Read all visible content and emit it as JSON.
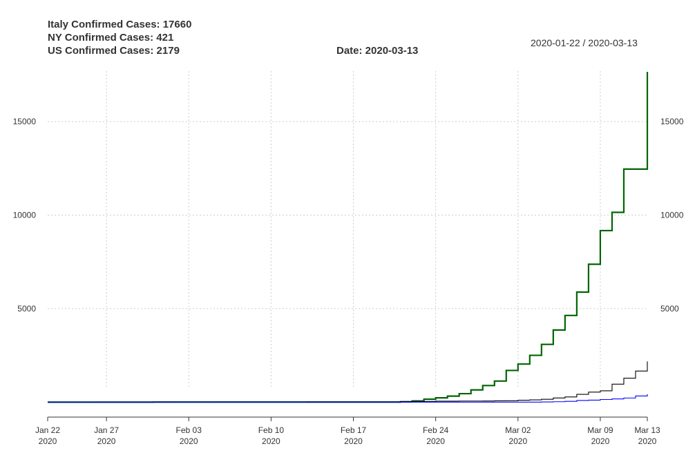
{
  "header": {
    "italy_line": "Italy Confirmed Cases: 17660",
    "ny_line": "NY Confirmed Cases: 421",
    "us_line": "US Confirmed Cases: 2179",
    "date_line": "Date: 2020-03-13",
    "range_line": "2020-01-22 / 2020-03-13"
  },
  "colors": {
    "italy": "#006400",
    "us": "#000000",
    "ny": "#0000ff",
    "grid": "#cccccc",
    "axis": "#333333",
    "text": "#333333"
  },
  "chart_data": {
    "type": "line",
    "step": true,
    "x_type": "date",
    "xlim": [
      "2020-01-22",
      "2020-03-13"
    ],
    "ylim": [
      -800,
      17700
    ],
    "grid": true,
    "x_ticks": [
      {
        "date": "2020-01-22",
        "label": "Jan 22",
        "sublabel": "2020"
      },
      {
        "date": "2020-01-27",
        "label": "Jan 27",
        "sublabel": "2020"
      },
      {
        "date": "2020-02-03",
        "label": "Feb 03",
        "sublabel": "2020"
      },
      {
        "date": "2020-02-10",
        "label": "Feb 10",
        "sublabel": "2020"
      },
      {
        "date": "2020-02-17",
        "label": "Feb 17",
        "sublabel": "2020"
      },
      {
        "date": "2020-02-24",
        "label": "Feb 24",
        "sublabel": "2020"
      },
      {
        "date": "2020-03-02",
        "label": "Mar 02",
        "sublabel": "2020"
      },
      {
        "date": "2020-03-09",
        "label": "Mar 09",
        "sublabel": "2020"
      },
      {
        "date": "2020-03-13",
        "label": "Mar 13",
        "sublabel": "2020"
      }
    ],
    "y_ticks": [
      5000,
      10000,
      15000
    ],
    "series": [
      {
        "name": "Italy",
        "color": "#006400",
        "width": 2.2,
        "points": [
          [
            "2020-01-22",
            0
          ],
          [
            "2020-01-31",
            2
          ],
          [
            "2020-02-07",
            3
          ],
          [
            "2020-02-20",
            3
          ],
          [
            "2020-02-21",
            20
          ],
          [
            "2020-02-22",
            62
          ],
          [
            "2020-02-23",
            155
          ],
          [
            "2020-02-24",
            229
          ],
          [
            "2020-02-25",
            322
          ],
          [
            "2020-02-26",
            453
          ],
          [
            "2020-02-27",
            655
          ],
          [
            "2020-02-28",
            888
          ],
          [
            "2020-02-29",
            1128
          ],
          [
            "2020-03-01",
            1694
          ],
          [
            "2020-03-02",
            2036
          ],
          [
            "2020-03-03",
            2502
          ],
          [
            "2020-03-04",
            3089
          ],
          [
            "2020-03-05",
            3858
          ],
          [
            "2020-03-06",
            4636
          ],
          [
            "2020-03-07",
            5883
          ],
          [
            "2020-03-08",
            7375
          ],
          [
            "2020-03-09",
            9172
          ],
          [
            "2020-03-10",
            10149
          ],
          [
            "2020-03-11",
            12462
          ],
          [
            "2020-03-12",
            12462
          ],
          [
            "2020-03-13",
            17660
          ]
        ]
      },
      {
        "name": "US",
        "color": "#000000",
        "width": 1.1,
        "points": [
          [
            "2020-01-22",
            1
          ],
          [
            "2020-01-24",
            2
          ],
          [
            "2020-01-26",
            5
          ],
          [
            "2020-01-31",
            7
          ],
          [
            "2020-02-02",
            8
          ],
          [
            "2020-02-05",
            12
          ],
          [
            "2020-02-13",
            15
          ],
          [
            "2020-02-21",
            35
          ],
          [
            "2020-02-24",
            53
          ],
          [
            "2020-02-26",
            59
          ],
          [
            "2020-02-28",
            62
          ],
          [
            "2020-02-29",
            70
          ],
          [
            "2020-03-01",
            76
          ],
          [
            "2020-03-02",
            101
          ],
          [
            "2020-03-03",
            122
          ],
          [
            "2020-03-04",
            153
          ],
          [
            "2020-03-05",
            221
          ],
          [
            "2020-03-06",
            278
          ],
          [
            "2020-03-07",
            417
          ],
          [
            "2020-03-08",
            537
          ],
          [
            "2020-03-09",
            605
          ],
          [
            "2020-03-10",
            959
          ],
          [
            "2020-03-11",
            1281
          ],
          [
            "2020-03-12",
            1663
          ],
          [
            "2020-03-13",
            2179
          ]
        ]
      },
      {
        "name": "NY",
        "color": "#0000ff",
        "width": 1.1,
        "points": [
          [
            "2020-01-22",
            0
          ],
          [
            "2020-03-01",
            1
          ],
          [
            "2020-03-03",
            2
          ],
          [
            "2020-03-04",
            11
          ],
          [
            "2020-03-05",
            22
          ],
          [
            "2020-03-06",
            44
          ],
          [
            "2020-03-07",
            89
          ],
          [
            "2020-03-08",
            106
          ],
          [
            "2020-03-09",
            142
          ],
          [
            "2020-03-10",
            173
          ],
          [
            "2020-03-11",
            220
          ],
          [
            "2020-03-12",
            328
          ],
          [
            "2020-03-13",
            421
          ]
        ]
      }
    ]
  }
}
